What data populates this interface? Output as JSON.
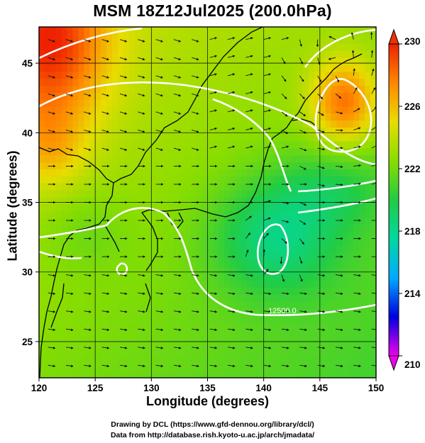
{
  "title": "MSM 18Z12Jul2025 (200.0hPa)",
  "xlabel": "Longitude (degrees)",
  "ylabel": "Latitude  (degrees)",
  "credits": [
    "Drawing by DCL (https://www.gfd-dennou.org/library/dcl/)",
    "Data from http://database.rish.kyoto-u.ac.jp/arch/jmadata/"
  ],
  "chart_data": {
    "type": "heatmap",
    "title": "MSM 18Z12Jul2025 (200.0hPa)",
    "xlabel": "Longitude (degrees)",
    "ylabel": "Latitude  (degrees)",
    "xlim": [
      120,
      150
    ],
    "ylim": [
      22.4,
      47.6
    ],
    "x_ticks": [
      120,
      125,
      130,
      135,
      140,
      145,
      150
    ],
    "y_ticks": [
      25,
      30,
      35,
      40,
      45
    ],
    "grid": true,
    "colorbar": {
      "min": 210,
      "max": 230,
      "ticks": [
        210,
        214,
        218,
        222,
        226,
        230
      ],
      "colors": [
        "#ee00ee",
        "#0000dd",
        "#00aaff",
        "#00d8a0",
        "#22cc44",
        "#88dd00",
        "#e8dd00",
        "#ff8800",
        "#ee2200"
      ]
    },
    "contour_labels": [
      "12500.0"
    ],
    "features": [
      {
        "name": "warm-high",
        "lon": 147.2,
        "lat": 42.2,
        "value": 228
      },
      {
        "name": "cool-low",
        "lon": 141.0,
        "lat": 32.5,
        "value": 219
      },
      {
        "name": "warm-northwest",
        "lon": 121.0,
        "lat": 46.5,
        "value": 228
      }
    ]
  }
}
